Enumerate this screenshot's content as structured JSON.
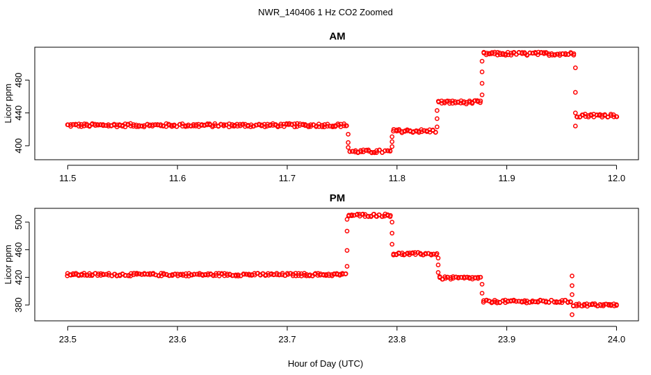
{
  "chart_data": {
    "suptitle": "NWR_140406  1 Hz CO2 Zoomed",
    "xlabel": "Hour of Day (UTC)",
    "panels": [
      {
        "type": "scatter",
        "title": "AM",
        "ylabel": "Licor ppm",
        "color": "#ff0000",
        "xlim": [
          11.47,
          12.02
        ],
        "ylim": [
          383,
          520
        ],
        "xticks": [
          11.5,
          11.6,
          11.7,
          11.8,
          11.9,
          12.0
        ],
        "xtick_labels": [
          "11.5",
          "11.6",
          "11.7",
          "11.8",
          "11.9",
          "12.0"
        ],
        "yticks": [
          400,
          440,
          480
        ],
        "ytick_labels": [
          "400",
          "440",
          "480"
        ],
        "segments": [
          {
            "x0": 11.5,
            "x1": 11.754,
            "y": 425
          },
          {
            "x0": 11.757,
            "x1": 11.794,
            "y": 393
          },
          {
            "x0": 11.797,
            "x1": 11.835,
            "y": 418
          },
          {
            "x0": 11.838,
            "x1": 11.876,
            "y": 453
          },
          {
            "x0": 11.879,
            "x1": 11.961,
            "y": 512
          },
          {
            "x0": 11.964,
            "x1": 12.0,
            "y": 437
          }
        ],
        "transitions": [
          {
            "x": 11.7555,
            "y": [
              414,
              404,
              398
            ]
          },
          {
            "x": 11.7955,
            "y": [
              399,
              405,
              411
            ]
          },
          {
            "x": 11.8365,
            "y": [
              423,
              433,
              443
            ]
          },
          {
            "x": 11.8775,
            "y": [
              462,
              476,
              490,
              503
            ]
          },
          {
            "x": 11.9625,
            "y": [
              495,
              465,
              440,
              424
            ]
          }
        ]
      },
      {
        "type": "scatter",
        "title": "PM",
        "ylabel": "Licor ppm",
        "color": "#ff0000",
        "xlim": [
          23.47,
          24.02
        ],
        "ylim": [
          357,
          520
        ],
        "xticks": [
          23.5,
          23.6,
          23.7,
          23.8,
          23.9,
          24.0
        ],
        "xtick_labels": [
          "23.5",
          "23.6",
          "23.7",
          "23.8",
          "23.9",
          "24.0"
        ],
        "yticks": [
          380,
          420,
          460,
          500
        ],
        "ytick_labels": [
          "380",
          "420",
          "460",
          "500"
        ],
        "segments": [
          {
            "x0": 23.5,
            "x1": 23.753,
            "y": 424
          },
          {
            "x0": 23.756,
            "x1": 23.794,
            "y": 510
          },
          {
            "x0": 23.797,
            "x1": 23.836,
            "y": 454
          },
          {
            "x0": 23.839,
            "x1": 23.876,
            "y": 419
          },
          {
            "x0": 23.879,
            "x1": 23.958,
            "y": 385
          },
          {
            "x0": 23.961,
            "x1": 24.0,
            "y": 380
          }
        ],
        "transitions": [
          {
            "x": 23.7545,
            "y": [
              436,
              459,
              487,
              504
            ]
          },
          {
            "x": 23.7955,
            "y": [
              500,
              484,
              468
            ]
          },
          {
            "x": 23.8375,
            "y": [
              448,
              438,
              427
            ]
          },
          {
            "x": 23.8775,
            "y": [
              410,
              397
            ]
          },
          {
            "x": 23.9595,
            "y": [
              422,
              408,
              395,
              366
            ]
          }
        ]
      }
    ]
  }
}
